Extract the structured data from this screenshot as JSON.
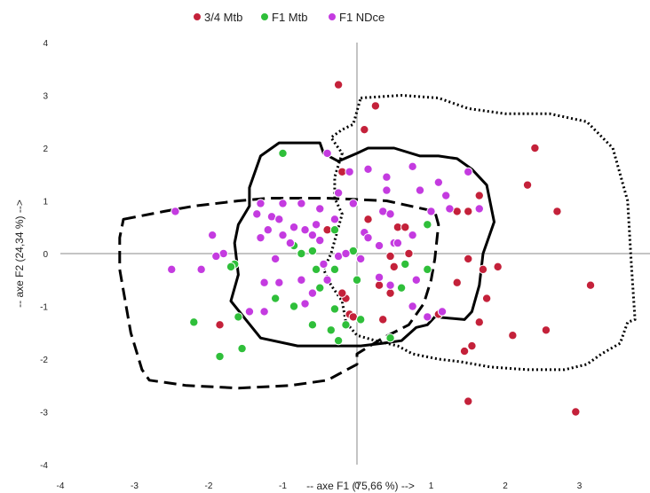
{
  "chart_data": {
    "type": "scatter",
    "xlabel": "-- axe F1 (75,66 %) -->",
    "ylabel": "-- axe F2 (24,34 %) -->",
    "xlim": [
      -4,
      4
    ],
    "ylim": [
      -4,
      4
    ],
    "x_ticks": [
      "-4",
      "-3",
      "-2",
      "-1",
      "0",
      "1",
      "2",
      "3",
      "4"
    ],
    "y_ticks": [
      "4",
      "3",
      "2",
      "1",
      "0",
      "-1",
      "-2",
      "-3",
      "-4"
    ],
    "legend_position": "top",
    "grid": false,
    "series": [
      {
        "name": "3/4 Mtb",
        "color": "#c4213a",
        "points": [
          [
            -0.25,
            3.2
          ],
          [
            0.25,
            2.8
          ],
          [
            0.1,
            2.35
          ],
          [
            2.4,
            2.0
          ],
          [
            2.3,
            1.3
          ],
          [
            1.65,
            1.1
          ],
          [
            1.35,
            0.8
          ],
          [
            1.5,
            0.8
          ],
          [
            2.7,
            0.8
          ],
          [
            -0.2,
            1.55
          ],
          [
            0.55,
            0.5
          ],
          [
            0.65,
            0.5
          ],
          [
            -0.4,
            0.45
          ],
          [
            0.15,
            0.65
          ],
          [
            0.45,
            -0.05
          ],
          [
            0.7,
            0.0
          ],
          [
            0.5,
            -0.25
          ],
          [
            0.45,
            -0.75
          ],
          [
            0.3,
            -0.6
          ],
          [
            1.5,
            -0.1
          ],
          [
            1.7,
            -0.3
          ],
          [
            1.35,
            -0.55
          ],
          [
            1.9,
            -0.25
          ],
          [
            1.75,
            -0.85
          ],
          [
            3.15,
            -0.6
          ],
          [
            1.65,
            -1.3
          ],
          [
            1.1,
            -1.15
          ],
          [
            2.55,
            -1.45
          ],
          [
            2.1,
            -1.55
          ],
          [
            1.55,
            -1.75
          ],
          [
            1.45,
            -1.85
          ],
          [
            0.35,
            -1.25
          ],
          [
            -0.15,
            -0.85
          ],
          [
            -0.2,
            -0.75
          ],
          [
            -0.1,
            -1.15
          ],
          [
            -0.05,
            -1.2
          ],
          [
            1.5,
            -2.8
          ],
          [
            2.95,
            -3.0
          ],
          [
            -1.85,
            -1.35
          ]
        ]
      },
      {
        "name": "F1 Mtb",
        "color": "#2fbf3a",
        "points": [
          [
            -1.0,
            1.9
          ],
          [
            0.95,
            0.55
          ],
          [
            -1.65,
            -0.2
          ],
          [
            -1.7,
            -0.25
          ],
          [
            -2.2,
            -1.3
          ],
          [
            -1.6,
            -1.2
          ],
          [
            -1.85,
            -1.95
          ],
          [
            -1.55,
            -1.8
          ],
          [
            -1.1,
            -0.85
          ],
          [
            -0.85,
            -1.0
          ],
          [
            -0.85,
            0.15
          ],
          [
            -0.75,
            -0.0
          ],
          [
            -0.6,
            0.05
          ],
          [
            -0.55,
            -0.3
          ],
          [
            -0.3,
            -0.3
          ],
          [
            -0.3,
            0.45
          ],
          [
            -0.05,
            0.05
          ],
          [
            0.0,
            -0.5
          ],
          [
            0.05,
            -1.25
          ],
          [
            -0.5,
            -0.65
          ],
          [
            -0.6,
            -1.35
          ],
          [
            -0.3,
            -1.05
          ],
          [
            -0.35,
            -1.45
          ],
          [
            -0.15,
            -1.35
          ],
          [
            0.6,
            -0.65
          ],
          [
            0.65,
            -0.2
          ],
          [
            0.95,
            -0.3
          ],
          [
            0.45,
            -1.6
          ],
          [
            -0.25,
            -1.65
          ]
        ]
      },
      {
        "name": "F1 NDce",
        "color": "#c43be0",
        "points": [
          [
            -2.45,
            0.8
          ],
          [
            -1.95,
            0.35
          ],
          [
            -1.8,
            0.0
          ],
          [
            -1.9,
            -0.05
          ],
          [
            -2.1,
            -0.3
          ],
          [
            -2.5,
            -0.3
          ],
          [
            -1.45,
            -1.1
          ],
          [
            -1.3,
            0.95
          ],
          [
            -1.35,
            0.75
          ],
          [
            -1.15,
            0.7
          ],
          [
            -1.05,
            0.65
          ],
          [
            -1.0,
            0.95
          ],
          [
            -1.2,
            0.45
          ],
          [
            -1.3,
            0.3
          ],
          [
            -1.0,
            0.35
          ],
          [
            -0.85,
            0.5
          ],
          [
            -0.7,
            0.45
          ],
          [
            -0.6,
            0.35
          ],
          [
            -0.5,
            0.25
          ],
          [
            -0.55,
            0.55
          ],
          [
            -0.3,
            0.65
          ],
          [
            -0.75,
            0.95
          ],
          [
            -0.25,
            1.15
          ],
          [
            -0.05,
            0.95
          ],
          [
            0.1,
            0.4
          ],
          [
            0.35,
            0.8
          ],
          [
            0.45,
            0.75
          ],
          [
            0.75,
            0.35
          ],
          [
            0.5,
            0.2
          ],
          [
            0.3,
            0.15
          ],
          [
            0.15,
            0.3
          ],
          [
            -0.4,
            1.9
          ],
          [
            -0.1,
            1.55
          ],
          [
            0.15,
            1.6
          ],
          [
            0.4,
            1.45
          ],
          [
            0.4,
            1.2
          ],
          [
            0.75,
            1.65
          ],
          [
            0.85,
            1.2
          ],
          [
            1.1,
            1.35
          ],
          [
            1.2,
            1.1
          ],
          [
            1.25,
            0.85
          ],
          [
            1.5,
            1.55
          ],
          [
            1.65,
            0.85
          ],
          [
            1.0,
            0.8
          ],
          [
            0.55,
            0.2
          ],
          [
            -1.25,
            -0.55
          ],
          [
            -1.1,
            -0.1
          ],
          [
            -0.75,
            -0.5
          ],
          [
            -0.6,
            -0.75
          ],
          [
            -0.4,
            -0.5
          ],
          [
            -0.45,
            -0.2
          ],
          [
            -0.25,
            -0.05
          ],
          [
            0.05,
            -0.1
          ],
          [
            0.3,
            -0.45
          ],
          [
            0.45,
            -0.6
          ],
          [
            0.8,
            -0.5
          ],
          [
            0.75,
            -1.0
          ],
          [
            0.95,
            -1.2
          ],
          [
            1.15,
            -1.1
          ],
          [
            -1.05,
            -0.55
          ],
          [
            -0.7,
            -0.95
          ],
          [
            -1.25,
            -1.1
          ],
          [
            -0.9,
            0.2
          ],
          [
            -0.5,
            0.85
          ],
          [
            -0.15,
            0.0
          ]
        ]
      }
    ],
    "outlines": [
      {
        "style": "solid",
        "points": [
          [
            -1.45,
            1.25
          ],
          [
            -1.3,
            1.85
          ],
          [
            -1.05,
            2.1
          ],
          [
            -0.5,
            2.1
          ],
          [
            -0.45,
            1.9
          ],
          [
            -0.25,
            1.75
          ],
          [
            0.0,
            1.9
          ],
          [
            0.15,
            2.0
          ],
          [
            0.5,
            2.0
          ],
          [
            0.85,
            1.85
          ],
          [
            1.1,
            1.85
          ],
          [
            1.35,
            1.8
          ],
          [
            1.55,
            1.6
          ],
          [
            1.75,
            1.3
          ],
          [
            1.85,
            0.6
          ],
          [
            1.7,
            0.0
          ],
          [
            1.65,
            -0.6
          ],
          [
            1.55,
            -1.1
          ],
          [
            1.45,
            -1.25
          ],
          [
            1.05,
            -1.2
          ],
          [
            0.95,
            -1.35
          ],
          [
            0.8,
            -1.4
          ],
          [
            0.6,
            -1.65
          ],
          [
            0.35,
            -1.7
          ],
          [
            0.05,
            -1.75
          ],
          [
            -0.8,
            -1.75
          ],
          [
            -1.3,
            -1.6
          ],
          [
            -1.5,
            -1.25
          ],
          [
            -1.7,
            -0.9
          ],
          [
            -1.6,
            -0.4
          ],
          [
            -1.65,
            0.2
          ],
          [
            -1.6,
            0.55
          ],
          [
            -1.45,
            0.9
          ],
          [
            -1.45,
            1.25
          ]
        ]
      },
      {
        "style": "dashed",
        "points": [
          [
            -3.15,
            0.65
          ],
          [
            -2.6,
            0.8
          ],
          [
            -2.2,
            0.9
          ],
          [
            -1.6,
            1.0
          ],
          [
            -1.2,
            1.05
          ],
          [
            -0.4,
            1.05
          ],
          [
            0.4,
            1.0
          ],
          [
            1.05,
            0.8
          ],
          [
            1.1,
            0.55
          ],
          [
            1.05,
            -0.1
          ],
          [
            1.0,
            -0.5
          ],
          [
            0.9,
            -0.95
          ],
          [
            0.7,
            -1.35
          ],
          [
            0.35,
            -1.6
          ],
          [
            0.0,
            -1.9
          ],
          [
            0.0,
            -2.1
          ],
          [
            -0.4,
            -2.4
          ],
          [
            -0.9,
            -2.5
          ],
          [
            -1.6,
            -2.55
          ],
          [
            -2.3,
            -2.5
          ],
          [
            -2.8,
            -2.4
          ],
          [
            -2.9,
            -2.2
          ],
          [
            -3.05,
            -1.5
          ],
          [
            -3.2,
            -0.3
          ],
          [
            -3.2,
            0.3
          ],
          [
            -3.15,
            0.65
          ]
        ]
      },
      {
        "style": "dotted",
        "points": [
          [
            0.05,
            2.95
          ],
          [
            0.6,
            3.0
          ],
          [
            1.1,
            2.95
          ],
          [
            1.5,
            2.75
          ],
          [
            2.0,
            2.65
          ],
          [
            2.6,
            2.65
          ],
          [
            3.1,
            2.5
          ],
          [
            3.45,
            2.0
          ],
          [
            3.65,
            1.0
          ],
          [
            3.7,
            -0.2
          ],
          [
            3.75,
            -1.25
          ],
          [
            3.65,
            -1.3
          ],
          [
            3.55,
            -1.7
          ],
          [
            3.3,
            -1.9
          ],
          [
            3.1,
            -2.1
          ],
          [
            2.8,
            -2.2
          ],
          [
            2.3,
            -2.2
          ],
          [
            1.8,
            -2.15
          ],
          [
            1.4,
            -2.05
          ],
          [
            1.1,
            -2.0
          ],
          [
            0.75,
            -1.9
          ],
          [
            0.55,
            -1.75
          ],
          [
            0.25,
            -1.65
          ],
          [
            0.0,
            -1.55
          ],
          [
            -0.15,
            -1.3
          ],
          [
            -0.2,
            -0.9
          ],
          [
            -0.35,
            -0.6
          ],
          [
            -0.45,
            -0.3
          ],
          [
            -0.35,
            0.0
          ],
          [
            -0.25,
            0.5
          ],
          [
            -0.2,
            0.75
          ],
          [
            -0.3,
            1.05
          ],
          [
            -0.3,
            1.45
          ],
          [
            -0.2,
            1.9
          ],
          [
            -0.35,
            2.2
          ],
          [
            -0.2,
            2.35
          ],
          [
            -0.05,
            2.45
          ],
          [
            0.05,
            2.95
          ]
        ]
      }
    ]
  }
}
